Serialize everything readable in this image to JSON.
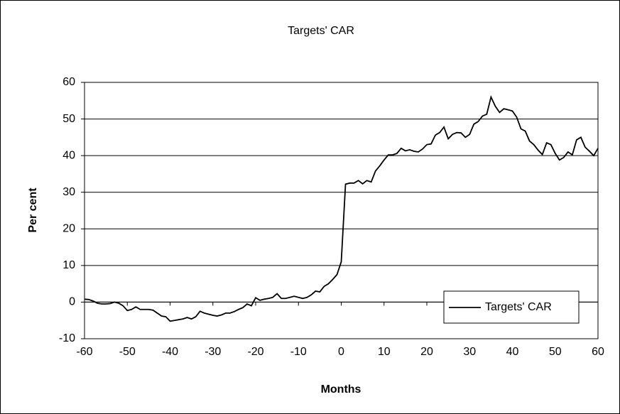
{
  "chart_data": {
    "type": "line",
    "title": "Targets' CAR",
    "xlabel": "Months",
    "ylabel": "Per cent",
    "x": [
      -60,
      -59,
      -58,
      -57,
      -56,
      -55,
      -54,
      -53,
      -52,
      -51,
      -50,
      -49,
      -48,
      -47,
      -46,
      -45,
      -44,
      -43,
      -42,
      -41,
      -40,
      -39,
      -38,
      -37,
      -36,
      -35,
      -34,
      -33,
      -32,
      -31,
      -30,
      -29,
      -28,
      -27,
      -26,
      -25,
      -24,
      -23,
      -22,
      -21,
      -20,
      -19,
      -18,
      -17,
      -16,
      -15,
      -14,
      -13,
      -12,
      -11,
      -10,
      -9,
      -8,
      -7,
      -6,
      -5,
      -4,
      -3,
      -2,
      -1,
      0,
      1,
      2,
      3,
      4,
      5,
      6,
      7,
      8,
      9,
      10,
      11,
      12,
      13,
      14,
      15,
      16,
      17,
      18,
      19,
      20,
      21,
      22,
      23,
      24,
      25,
      26,
      27,
      28,
      29,
      30,
      31,
      32,
      33,
      34,
      35,
      36,
      37,
      38,
      39,
      40,
      41,
      42,
      43,
      44,
      45,
      46,
      47,
      48,
      49,
      50,
      51,
      52,
      53,
      54,
      55,
      56,
      57,
      58,
      59,
      60
    ],
    "series": [
      {
        "name": "Targets' CAR",
        "color": "#000000",
        "values": [
          0.8,
          0.7,
          0.3,
          -0.3,
          -0.5,
          -0.5,
          -0.4,
          0,
          -0.3,
          -1,
          -2.3,
          -2,
          -1.3,
          -2,
          -2,
          -2,
          -2.2,
          -3,
          -3.8,
          -4,
          -5.2,
          -5,
          -4.8,
          -4.6,
          -4.2,
          -4.6,
          -4,
          -2.5,
          -3,
          -3.3,
          -3.6,
          -3.8,
          -3.5,
          -3,
          -3,
          -2.6,
          -2,
          -1.5,
          -0.5,
          -1,
          1.2,
          0.5,
          0.8,
          1,
          1.3,
          2.3,
          1,
          1,
          1.3,
          1.6,
          1.3,
          1,
          1.3,
          2,
          3,
          2.8,
          4.3,
          5,
          6.2,
          7.5,
          11,
          32.2,
          32.5,
          32.5,
          33.2,
          32.3,
          33.2,
          32.8,
          35.8,
          37.2,
          38.8,
          40.2,
          40.2,
          40.6,
          42,
          41.3,
          41.6,
          41.2,
          41,
          41.8,
          43,
          43.2,
          45.6,
          46.3,
          47.8,
          44.6,
          45.8,
          46.3,
          46.2,
          45,
          45.8,
          48.6,
          49.3,
          50.8,
          51.3,
          56,
          53.5,
          51.8,
          52.8,
          52.5,
          52.2,
          50.5,
          47.3,
          46.7,
          44,
          43,
          41.5,
          40.3,
          43.5,
          43,
          40.6,
          38.8,
          39.5,
          41,
          40.2,
          44.3,
          45,
          42.3,
          41.2,
          40,
          42
        ]
      }
    ],
    "xlim": [
      -60,
      60
    ],
    "xticks": [
      -60,
      -50,
      -40,
      -30,
      -20,
      -10,
      0,
      10,
      20,
      30,
      40,
      50,
      60
    ],
    "ylim": [
      -10,
      60
    ],
    "yticks": [
      -10,
      0,
      10,
      20,
      30,
      40,
      50,
      60
    ],
    "grid": true,
    "legend": "lower right"
  }
}
